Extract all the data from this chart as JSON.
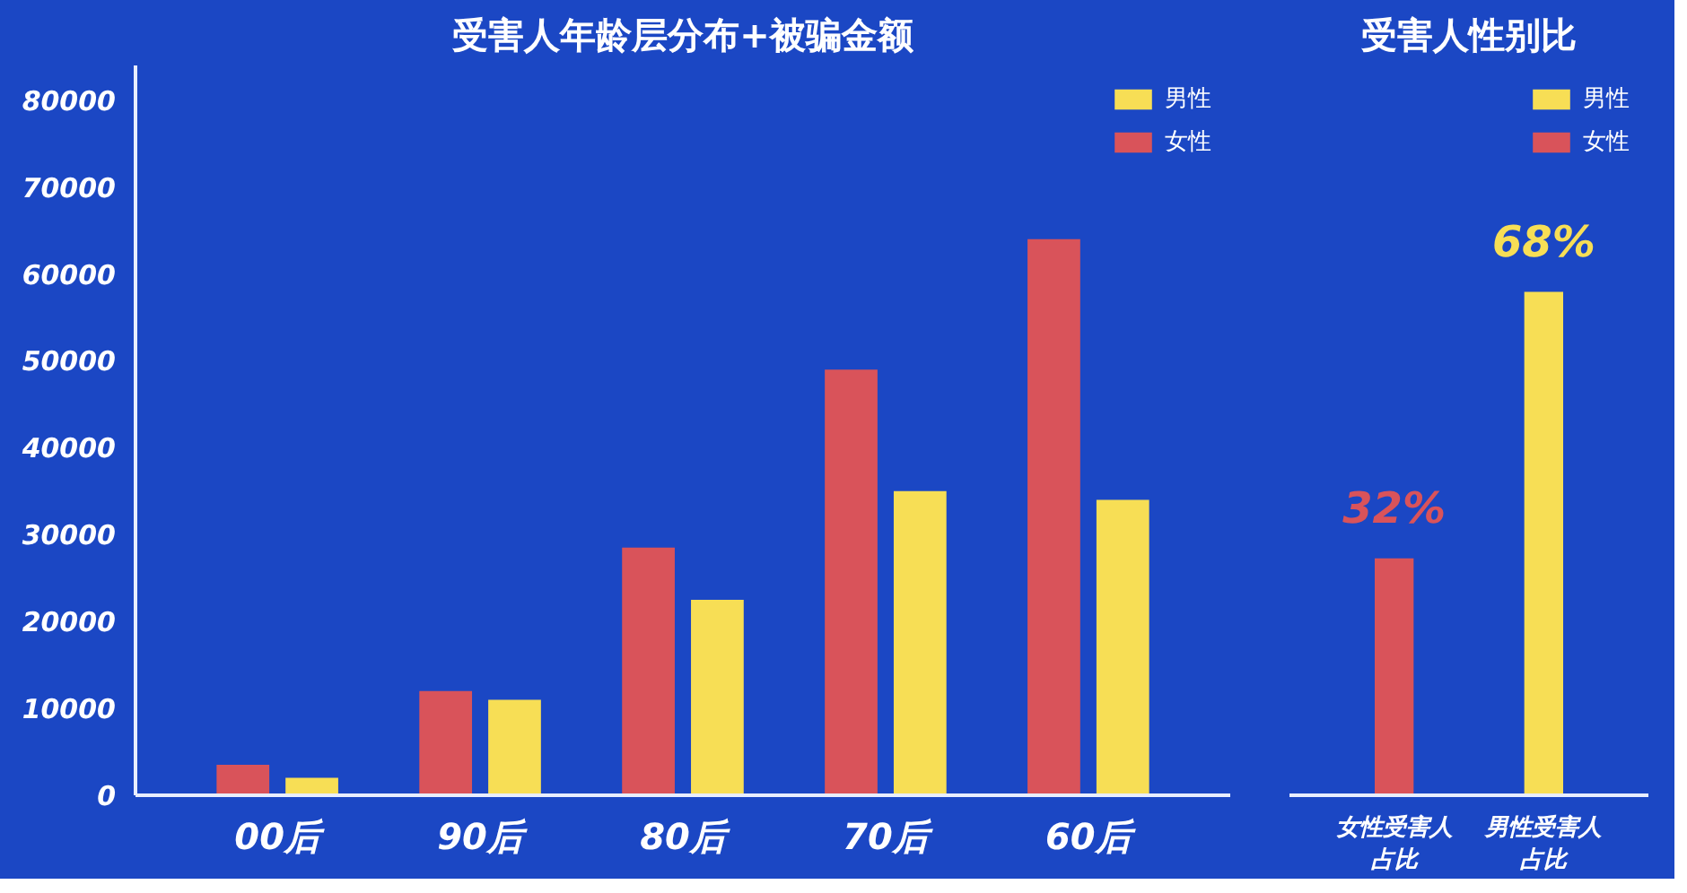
{
  "chart_data": [
    {
      "type": "bar",
      "title": "受害人年龄层分布+被骗金额",
      "categories": [
        "00后",
        "90后",
        "80后",
        "70后",
        "60后"
      ],
      "series": [
        {
          "name": "女性",
          "color": "#d9535a",
          "values": [
            3500,
            12000,
            28500,
            49000,
            64000
          ]
        },
        {
          "name": "男性",
          "color": "#f7de55",
          "values": [
            2000,
            11000,
            22500,
            35000,
            34000
          ]
        }
      ],
      "ylim": [
        0,
        84000
      ],
      "yticks": [
        0,
        10000,
        20000,
        30000,
        40000,
        50000,
        60000,
        70000,
        80000
      ],
      "grid": false,
      "legend": "top right"
    },
    {
      "type": "bar",
      "title": "受害人性别比",
      "categories": [
        "女性受害人占比",
        "男性受害人占比"
      ],
      "tick_labels": "x",
      "stacked": true,
      "series": [
        {
          "name": "女性",
          "color": "#d9535a",
          "values": [
            32,
            null
          ],
          "value_labels": [
            "32%",
            null
          ]
        },
        {
          "name": "男性",
          "color": "#f7de55",
          "values": [
            null,
            68
          ],
          "value_labels": [
            null,
            "68%"
          ]
        }
      ],
      "legend": "top right"
    }
  ]
}
